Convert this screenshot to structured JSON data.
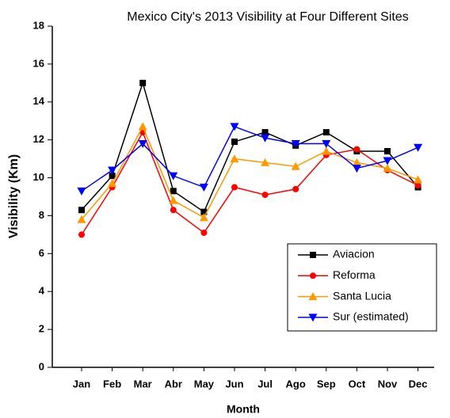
{
  "chart_data": {
    "type": "line",
    "title": "Mexico City's 2013 Visibility at Four Different Sites",
    "x_label": "Month",
    "y_label": "Visibility (Km)",
    "categories": [
      "Jan",
      "Feb",
      "Mar",
      "Abr",
      "May",
      "Jun",
      "Jul",
      "Ago",
      "Sep",
      "Oct",
      "Nov",
      "Dec"
    ],
    "ylim": [
      0,
      18
    ],
    "yticks": [
      0,
      2,
      4,
      6,
      8,
      10,
      12,
      14,
      16,
      18
    ],
    "legend_position": "lower right",
    "series": [
      {
        "name": "Aviacion",
        "color": "#000000",
        "marker": "square",
        "values": [
          8.3,
          10.1,
          15.0,
          9.3,
          8.2,
          11.9,
          12.4,
          11.7,
          12.4,
          11.4,
          11.4,
          9.5
        ]
      },
      {
        "name": "Reforma",
        "color": "#ff0000",
        "marker": "circle",
        "values": [
          7.0,
          9.5,
          12.4,
          8.3,
          7.1,
          9.5,
          9.1,
          9.4,
          11.2,
          11.5,
          10.4,
          9.6
        ]
      },
      {
        "name": "Santa Lucia",
        "color": "#ff9900",
        "marker": "triangle-up",
        "values": [
          7.8,
          9.7,
          12.7,
          8.8,
          7.9,
          11.0,
          10.8,
          10.6,
          11.4,
          10.8,
          10.5,
          9.9
        ]
      },
      {
        "name": "Sur (estimated)",
        "color": "#0000ff",
        "marker": "triangle-down",
        "values": [
          9.3,
          10.4,
          11.8,
          10.1,
          9.5,
          12.7,
          12.1,
          11.8,
          11.8,
          10.5,
          10.9,
          11.6
        ]
      }
    ]
  }
}
